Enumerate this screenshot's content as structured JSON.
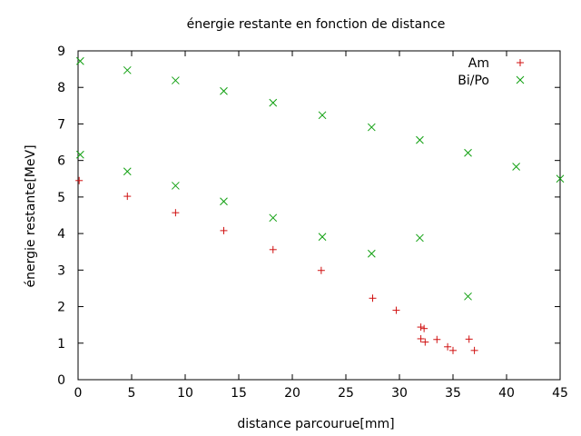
{
  "chart_data": {
    "type": "scatter",
    "title": "énergie restante en fonction de distance",
    "xlabel": "distance parcourue[mm]",
    "ylabel": "énergie restante[MeV]",
    "xlim": [
      0,
      45
    ],
    "ylim": [
      0,
      9
    ],
    "xticks": [
      "0",
      "5",
      "10",
      "15",
      "20",
      "25",
      "30",
      "35",
      "40",
      "45"
    ],
    "yticks": [
      "0",
      "1",
      "2",
      "3",
      "4",
      "5",
      "6",
      "7",
      "8",
      "9"
    ],
    "grid": false,
    "legend_position": "top-right",
    "series": [
      {
        "name": "Am",
        "marker": "plus",
        "color": "#d01010",
        "points": [
          [
            0.1,
            5.45
          ],
          [
            4.6,
            5.02
          ],
          [
            9.1,
            4.57
          ],
          [
            13.6,
            4.08
          ],
          [
            18.2,
            3.56
          ],
          [
            22.7,
            2.99
          ],
          [
            27.5,
            2.23
          ],
          [
            29.7,
            1.9
          ],
          [
            32.0,
            1.44
          ],
          [
            32.3,
            1.4
          ],
          [
            32.0,
            1.12
          ],
          [
            32.4,
            1.03
          ],
          [
            33.5,
            1.1
          ],
          [
            34.5,
            0.9
          ],
          [
            35.0,
            0.8
          ],
          [
            36.5,
            1.11
          ],
          [
            37.0,
            0.8
          ]
        ]
      },
      {
        "name": "Bi/Po",
        "marker": "cross",
        "color": "#10a010",
        "points": [
          [
            0.2,
            8.72
          ],
          [
            4.6,
            8.47
          ],
          [
            9.1,
            8.19
          ],
          [
            13.6,
            7.9
          ],
          [
            18.2,
            7.58
          ],
          [
            22.8,
            7.24
          ],
          [
            27.4,
            6.91
          ],
          [
            31.9,
            6.56
          ],
          [
            36.4,
            6.21
          ],
          [
            40.9,
            5.83
          ],
          [
            45.0,
            5.5
          ],
          [
            0.2,
            6.16
          ],
          [
            4.6,
            5.7
          ],
          [
            9.1,
            5.31
          ],
          [
            13.6,
            4.88
          ],
          [
            18.2,
            4.43
          ],
          [
            22.8,
            3.91
          ],
          [
            27.4,
            3.45
          ],
          [
            31.9,
            3.88
          ],
          [
            36.4,
            2.28
          ]
        ]
      }
    ]
  }
}
